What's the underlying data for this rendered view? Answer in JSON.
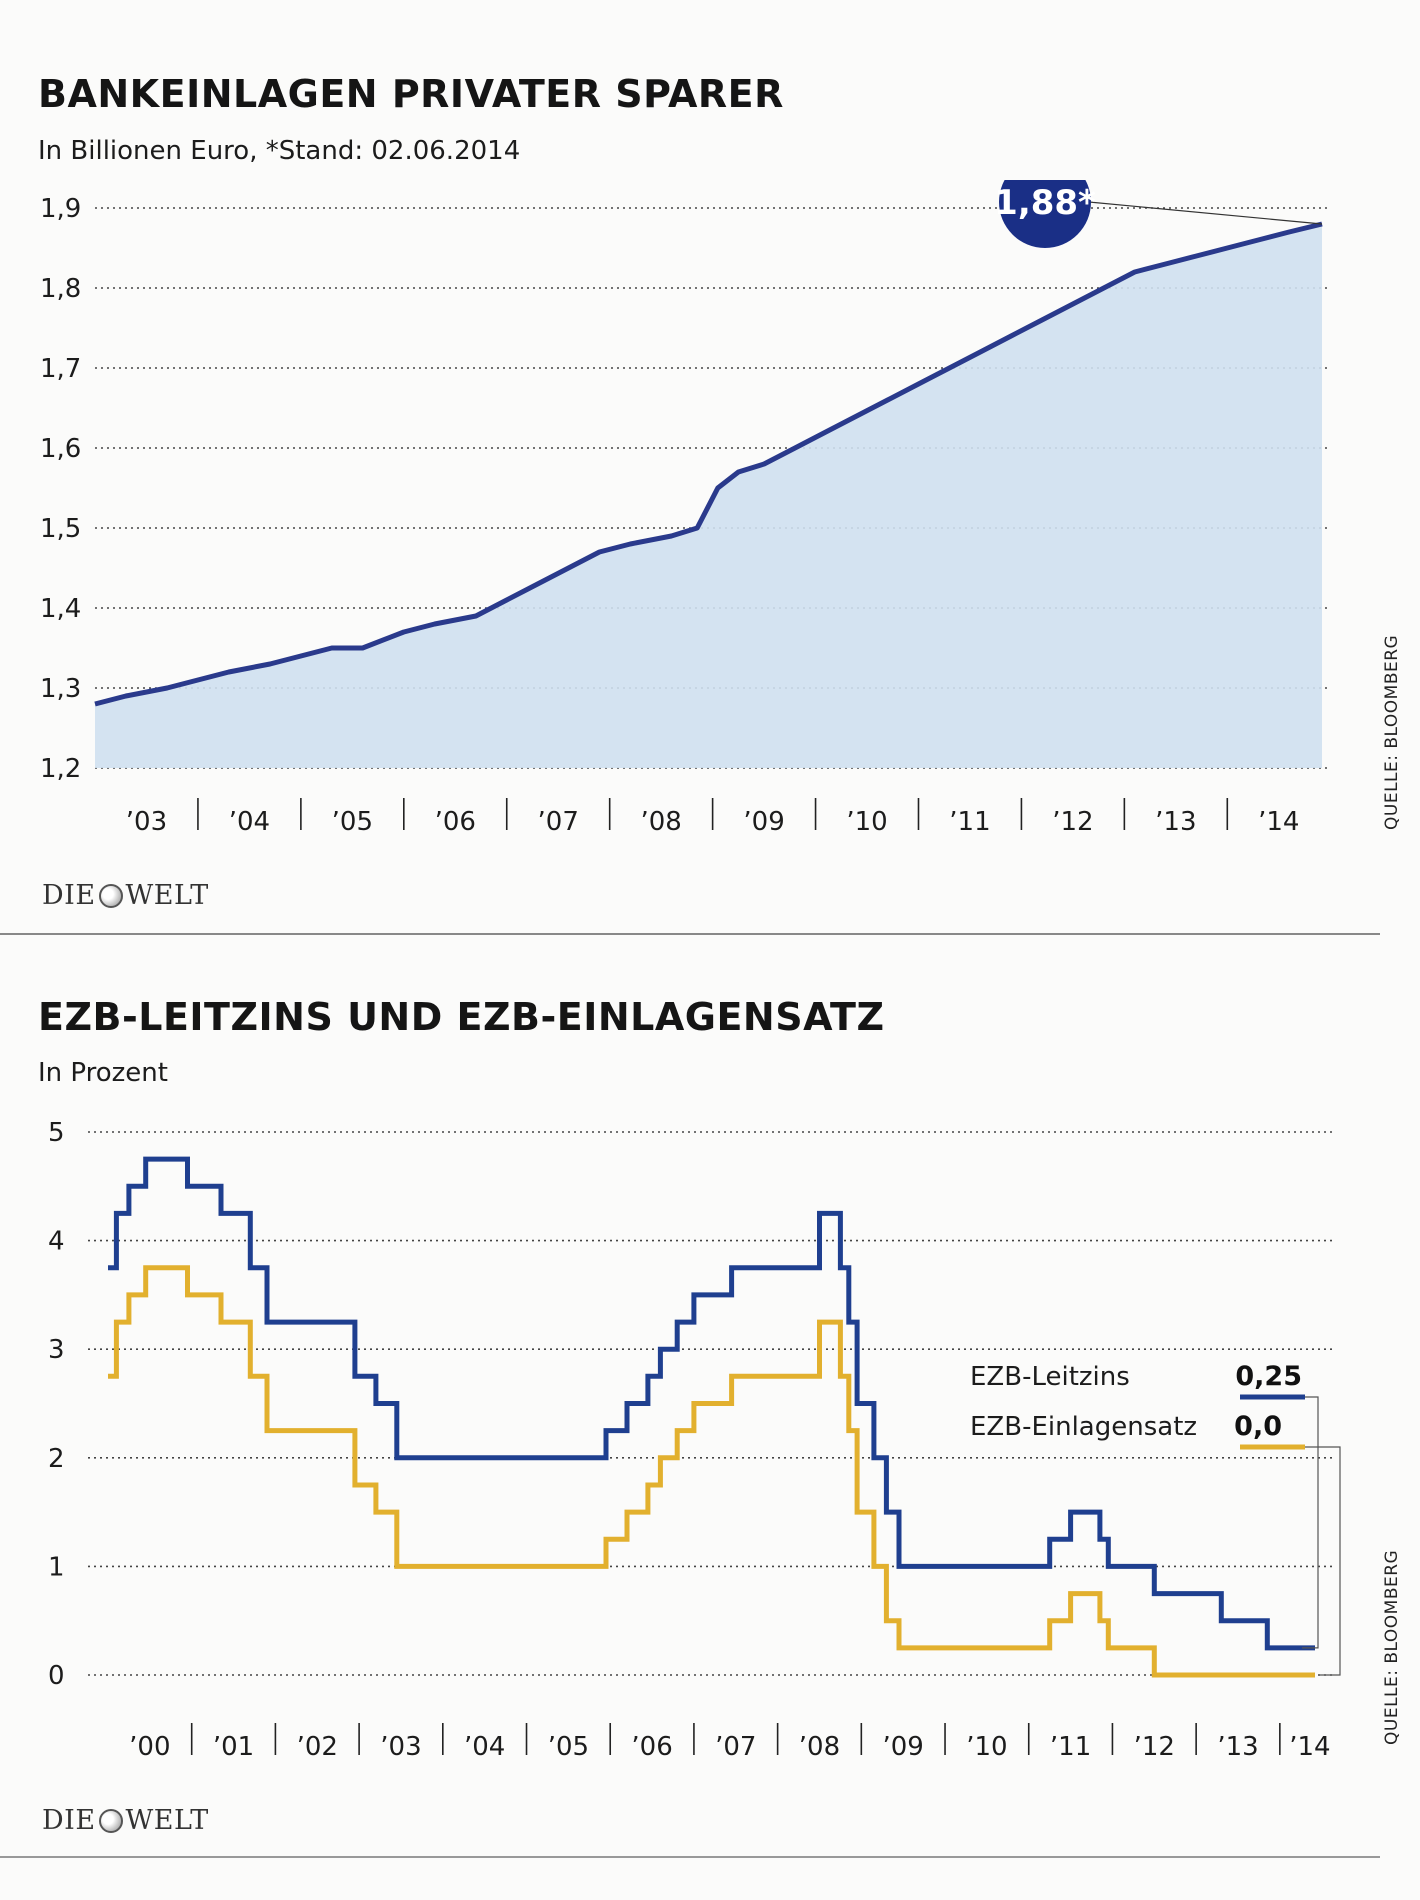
{
  "brand": "DIE WELT",
  "chart_data": [
    {
      "type": "area",
      "title": "BANKEINLAGEN PRIVATER SPARER",
      "subtitle": "In Billionen Euro, *Stand: 02.06.2014",
      "annotation": "1,88*",
      "source": "QUELLE: BLOOMBERG",
      "ylim": [
        1.2,
        1.9
      ],
      "y_ticks": [
        "1,9",
        "1,8",
        "1,7",
        "1,6",
        "1,5",
        "1,4",
        "1,3",
        "1,2"
      ],
      "x_labels": [
        "’03",
        "’04",
        "’05",
        "’06",
        "’07",
        "’08",
        "’09",
        "’10",
        "’11",
        "’12",
        "’13",
        "’14"
      ],
      "xlim": [
        2002.5,
        2014.42
      ],
      "series": [
        {
          "name": "Bankeinlagen",
          "color": "#2a3a8c",
          "fill": "#cfe0ef",
          "x": [
            2002.5,
            2002.8,
            2003.2,
            2003.5,
            2003.8,
            2004.2,
            2004.5,
            2004.8,
            2005.1,
            2005.5,
            2005.8,
            2006.2,
            2006.5,
            2006.8,
            2007.1,
            2007.4,
            2007.7,
            2008.1,
            2008.35,
            2008.55,
            2008.75,
            2009.0,
            2009.3,
            2009.6,
            2009.9,
            2010.2,
            2010.5,
            2010.8,
            2011.1,
            2011.4,
            2011.7,
            2012.0,
            2012.3,
            2012.6,
            2012.9,
            2013.2,
            2013.5,
            2013.8,
            2014.1,
            2014.42
          ],
          "values": [
            1.28,
            1.29,
            1.3,
            1.31,
            1.32,
            1.33,
            1.34,
            1.35,
            1.35,
            1.37,
            1.38,
            1.39,
            1.41,
            1.43,
            1.45,
            1.47,
            1.48,
            1.49,
            1.5,
            1.55,
            1.57,
            1.58,
            1.6,
            1.62,
            1.64,
            1.66,
            1.68,
            1.7,
            1.72,
            1.74,
            1.76,
            1.78,
            1.8,
            1.82,
            1.83,
            1.84,
            1.85,
            1.86,
            1.87,
            1.88
          ]
        }
      ]
    },
    {
      "type": "line",
      "step": true,
      "title": "EZB-LEITZINS UND EZB-EINLAGENSATZ",
      "subtitle": "In Prozent",
      "source": "QUELLE: BLOOMBERG",
      "ylim": [
        0,
        5
      ],
      "y_ticks": [
        "5",
        "4",
        "3",
        "2",
        "1",
        "0"
      ],
      "x_labels": [
        "’00",
        "’01",
        "’02",
        "’03",
        "’04",
        "’05",
        "’06",
        "’07",
        "’08",
        "’09",
        "’10",
        "’11",
        "’12",
        "’13",
        "’14"
      ],
      "xlim": [
        2000.0,
        2014.42
      ],
      "legend": [
        {
          "label": "EZB-Leitzins",
          "value": "0,25"
        },
        {
          "label": "EZB-Einlagensatz",
          "value": "0,0"
        }
      ],
      "series": [
        {
          "name": "EZB-Leitzins",
          "color": "#1f3f8f",
          "x": [
            2000.0,
            2000.1,
            2000.25,
            2000.45,
            2000.95,
            2001.35,
            2001.7,
            2001.9,
            2002.95,
            2003.2,
            2003.45,
            2005.95,
            2006.2,
            2006.45,
            2006.6,
            2006.8,
            2007.0,
            2007.45,
            2008.5,
            2008.75,
            2008.85,
            2008.95,
            2009.15,
            2009.3,
            2009.45,
            2011.25,
            2011.5,
            2011.85,
            2011.95,
            2012.5,
            2013.3,
            2013.85,
            2014.42
          ],
          "values": [
            3.75,
            4.25,
            4.5,
            4.75,
            4.5,
            4.25,
            3.75,
            3.25,
            2.75,
            2.5,
            2.0,
            2.25,
            2.5,
            2.75,
            3.0,
            3.25,
            3.5,
            3.75,
            4.25,
            3.75,
            3.25,
            2.5,
            2.0,
            1.5,
            1.0,
            1.25,
            1.5,
            1.25,
            1.0,
            0.75,
            0.5,
            0.25,
            0.25
          ]
        },
        {
          "name": "EZB-Einlagensatz",
          "color": "#e2b02e",
          "x": [
            2000.0,
            2000.1,
            2000.25,
            2000.45,
            2000.95,
            2001.35,
            2001.7,
            2001.9,
            2002.95,
            2003.2,
            2003.45,
            2005.95,
            2006.2,
            2006.45,
            2006.6,
            2006.8,
            2007.0,
            2007.45,
            2008.5,
            2008.75,
            2008.85,
            2008.95,
            2009.15,
            2009.3,
            2009.45,
            2011.25,
            2011.5,
            2011.85,
            2011.95,
            2012.5,
            2014.42
          ],
          "values": [
            2.75,
            3.25,
            3.5,
            3.75,
            3.5,
            3.25,
            2.75,
            2.25,
            1.75,
            1.5,
            1.0,
            1.25,
            1.5,
            1.75,
            2.0,
            2.25,
            2.5,
            2.75,
            3.25,
            2.75,
            2.25,
            1.5,
            1.0,
            0.5,
            0.25,
            0.5,
            0.75,
            0.5,
            0.25,
            0.0,
            0.0
          ]
        }
      ]
    }
  ]
}
